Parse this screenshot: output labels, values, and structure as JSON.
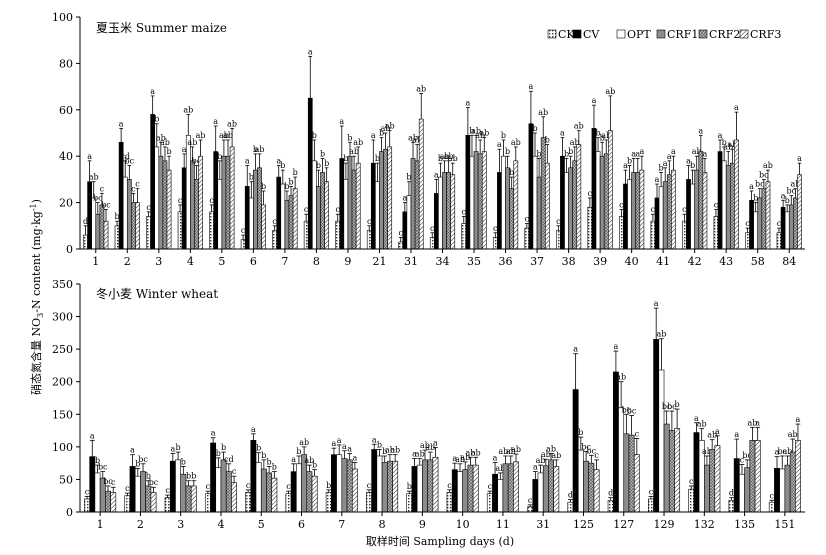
{
  "chart_data": {
    "type": "bar",
    "xlabel": "取样时间 Sampling days (d)",
    "ylabel": "硝态氮含量 NO3-N content (mg·kg-1)",
    "ylabel_parts": {
      "pre": "硝态氮含量 NO",
      "sub1": "3",
      "mid": "-N content (mg·kg",
      "sup": "-1",
      "post": ")"
    },
    "legend": [
      "CK",
      "CV",
      "OPT",
      "CRF1",
      "CRF2",
      "CRF3"
    ],
    "legend_position": "top-right",
    "colors": {
      "CK": "#ffffff",
      "CV": "#000000",
      "OPT": "#ffffff",
      "CRF1": "#8c8c8c",
      "CRF2": "#bdbdbd",
      "CRF3": "#ffffff"
    },
    "panels": [
      {
        "title": "夏玉米 Summer maize",
        "ylim": [
          0,
          100
        ],
        "yticks": [
          0,
          20,
          40,
          60,
          80,
          100
        ],
        "categories": [
          "1",
          "2",
          "3",
          "4",
          "5",
          "6",
          "7",
          "8",
          "9",
          "21",
          "31",
          "34",
          "35",
          "36",
          "37",
          "38",
          "39",
          "40",
          "41",
          "42",
          "43",
          "58",
          "84"
        ],
        "series": [
          {
            "name": "CK",
            "values": [
              6,
              10,
              14,
              16,
              16,
              4,
              8,
              12,
              12,
              8,
              3,
              5,
              11,
              5,
              9,
              8,
              18,
              14,
              12,
              12,
              14,
              7,
              7
            ],
            "errors": [
              4,
              2,
              2,
              3,
              3,
              2,
              2,
              3,
              3,
              2,
              2,
              2,
              3,
              2,
              2,
              2,
              4,
              3,
              3,
              3,
              3,
              2,
              2
            ]
          },
          {
            "name": "CV",
            "values": [
              29,
              46,
              58,
              35,
              42,
              27,
              31,
              65,
              39,
              37,
              16,
              24,
              49,
              33,
              54,
              40,
              52,
              28,
              22,
              30,
              42,
              21,
              18
            ],
            "errors": [
              9,
              6,
              8,
              6,
              11,
              9,
              5,
              18,
              14,
              10,
              4,
              6,
              12,
              10,
              14,
              8,
              10,
              6,
              6,
              6,
              5,
              4,
              3
            ]
          },
          {
            "name": "OPT",
            "values": [
              22,
              31,
              44,
              49,
              30,
              22,
              28,
              38,
              30,
              29,
              23,
              31,
              40,
              40,
              40,
              33,
              42,
              30,
              27,
              28,
              38,
              16,
              16
            ],
            "errors": [
              7,
              7,
              10,
              9,
              8,
              7,
              6,
              9,
              7,
              8,
              6,
              6,
              9,
              7,
              10,
              6,
              6,
              6,
              6,
              6,
              6,
              4,
              3
            ]
          },
          {
            "name": "CRF1",
            "values": [
              15,
              30,
              40,
              38,
              40,
              34,
              21,
              27,
              40,
              42,
              39,
              33,
              42,
              35,
              31,
              35,
              40,
              33,
              29,
              34,
              36,
              22,
              19
            ],
            "errors": [
              5,
              6,
              6,
              6,
              7,
              7,
              4,
              7,
              6,
              6,
              7,
              5,
              7,
              5,
              8,
              5,
              6,
              6,
              6,
              6,
              6,
              4,
              4
            ]
          },
          {
            "name": "CRF2",
            "values": [
              19,
              20,
              38,
              30,
              40,
              35,
              23,
              33,
              34,
              43,
              38,
              33,
              41,
              26,
              48,
              38,
              41,
              33,
              32,
              42,
              37,
              26,
              22
            ],
            "errors": [
              5,
              4,
              6,
              6,
              7,
              6,
              4,
              6,
              6,
              7,
              7,
              5,
              6,
              5,
              9,
              6,
              6,
              6,
              6,
              7,
              6,
              4,
              4
            ]
          },
          {
            "name": "CRF3",
            "values": [
              12,
              20,
              34,
              40,
              44,
              19,
              26,
              29,
              37,
              44,
              56,
              32,
              42,
              38,
              37,
              45,
              51,
              34,
              34,
              33,
              47,
              29,
              32
            ],
            "errors": [
              5,
              6,
              6,
              7,
              8,
              6,
              5,
              6,
              7,
              7,
              11,
              5,
              6,
              6,
              8,
              6,
              15,
              6,
              6,
              6,
              12,
              5,
              5
            ]
          }
        ],
        "labels": [
          [
            "d",
            "b",
            "c",
            "c",
            "c",
            "c",
            "c",
            "c",
            "c",
            "c",
            "c",
            "c",
            "c",
            "c",
            "c",
            "c",
            "c",
            "c",
            "c",
            "c",
            "c",
            "c",
            "c"
          ],
          [
            "a",
            "a",
            "a",
            "a",
            "a",
            "a",
            "a",
            "a",
            "a",
            "a",
            "a",
            "a",
            "a",
            "a",
            "a",
            "a",
            "a",
            "a",
            "a",
            "a",
            "a",
            "a",
            "a"
          ],
          [
            "ab",
            "cd",
            "b",
            "ab",
            "b",
            "b",
            "b",
            "b",
            "b",
            "b",
            "b",
            "b",
            "b",
            "b",
            "b",
            "b",
            "b",
            "b",
            "b",
            "b",
            "b",
            "b",
            "b"
          ],
          [
            "bc",
            "bc",
            "ab",
            "ab",
            "ab",
            "b",
            "b",
            "b",
            "b",
            "b",
            "ab",
            "ab",
            "ab",
            "b",
            "b",
            "b",
            "b",
            "a",
            "a",
            "ab",
            "ab",
            "bc",
            "bc"
          ],
          [
            "c",
            "c",
            "ab",
            "bc",
            "ab",
            "ab",
            "b",
            "b",
            "ab",
            "ab",
            "ab",
            "ab",
            "ab",
            "b",
            "ab",
            "ab",
            "ab",
            "a",
            "a",
            "a",
            "ab",
            "bc",
            "ab"
          ],
          [
            "bc",
            "c",
            "b",
            "ab",
            "ab",
            "b",
            "b",
            "b",
            "ab",
            "ab",
            "ab",
            "ab",
            "ab",
            "ab",
            "b",
            "ab",
            "ab",
            "a",
            "a",
            "a",
            "a",
            "ab",
            "a"
          ]
        ]
      },
      {
        "title": "冬小麦 Winter wheat",
        "ylim": [
          0,
          350
        ],
        "yticks": [
          0,
          50,
          100,
          150,
          200,
          250,
          300,
          350
        ],
        "categories": [
          "1",
          "2",
          "3",
          "4",
          "5",
          "6",
          "7",
          "8",
          "9",
          "10",
          "11",
          "31",
          "125",
          "127",
          "129",
          "132",
          "135",
          "151"
        ],
        "series": [
          {
            "name": "CK",
            "values": [
              20,
              25,
              22,
              28,
              30,
              28,
              30,
              30,
              28,
              30,
              28,
              8,
              15,
              18,
              20,
              35,
              18,
              15
            ],
            "errors": [
              4,
              4,
              4,
              4,
              4,
              4,
              4,
              4,
              4,
              4,
              4,
              3,
              4,
              4,
              4,
              5,
              4,
              3
            ]
          },
          {
            "name": "CV",
            "values": [
              85,
              70,
              78,
              106,
              110,
              62,
              88,
              96,
              70,
              65,
              58,
              50,
              188,
              215,
              265,
              122,
              82,
              67
            ],
            "errors": [
              25,
              18,
              12,
              8,
              10,
              12,
              10,
              8,
              12,
              10,
              18,
              12,
              55,
              32,
              48,
              15,
              30,
              18
            ]
          },
          {
            "name": "OPT",
            "values": [
              60,
              55,
              80,
              68,
              76,
              74,
              88,
              86,
              72,
              62,
              50,
              60,
              95,
              160,
              218,
              110,
              58,
              66
            ],
            "errors": [
              12,
              12,
              12,
              15,
              15,
              12,
              15,
              10,
              10,
              12,
              10,
              12,
              20,
              40,
              48,
              18,
              15,
              20
            ]
          },
          {
            "name": "CRF1",
            "values": [
              52,
              62,
              58,
              80,
              66,
              88,
              82,
              76,
              80,
              65,
              74,
              71,
              78,
              120,
              135,
              72,
              68,
              72
            ],
            "errors": [
              10,
              12,
              12,
              12,
              14,
              12,
              12,
              10,
              15,
              12,
              12,
              10,
              15,
              30,
              20,
              14,
              12,
              14
            ]
          },
          {
            "name": "CRF2",
            "values": [
              32,
              40,
              40,
              62,
              60,
              62,
              80,
              78,
              80,
              72,
              74,
              80,
              75,
              118,
              125,
              96,
              110,
              92
            ],
            "errors": [
              8,
              8,
              8,
              12,
              10,
              10,
              10,
              10,
              12,
              12,
              12,
              10,
              12,
              30,
              30,
              15,
              20,
              20
            ]
          },
          {
            "name": "CRF3",
            "values": [
              30,
              30,
              40,
              45,
              52,
              55,
              66,
              78,
              84,
              72,
              77,
              70,
              65,
              88,
              128,
              102,
              110,
              110
            ],
            "errors": [
              8,
              8,
              8,
              10,
              10,
              10,
              10,
              10,
              15,
              12,
              12,
              10,
              15,
              25,
              30,
              15,
              20,
              25
            ]
          }
        ],
        "labels": [
          [
            "c",
            "c",
            "c",
            "c",
            "c",
            "c",
            "b",
            "c",
            "b",
            "c",
            "c",
            "c",
            "d",
            "d",
            "c",
            "c",
            "d",
            "c"
          ],
          [
            "a",
            "a",
            "a",
            "a",
            "a",
            "a",
            "a",
            "a",
            "a",
            "a",
            "a",
            "a",
            "a",
            "a",
            "a",
            "a",
            "a",
            "a"
          ],
          [
            "b",
            "b",
            "b",
            "b",
            "b",
            "b",
            "a",
            "b",
            "ab",
            "ab",
            "ab",
            "ab",
            "b",
            "ab",
            "ab",
            "ab",
            "c",
            "bc"
          ],
          [
            "bc",
            "bc",
            "b",
            "b",
            "b",
            "ab",
            "a",
            "b",
            "ab",
            "ab",
            "abc",
            "ab",
            "bc",
            "bc",
            "bc",
            "ab",
            "bc",
            "ab"
          ],
          [
            "bc",
            "b",
            "b",
            "cd",
            "b",
            "ab",
            "a",
            "ab",
            "ab",
            "ab",
            "ab",
            "ab",
            "bc",
            "bc",
            "bc",
            "ab",
            "ab",
            "ab"
          ],
          [
            "c",
            "bc",
            "b",
            "c",
            "b",
            "b",
            "a",
            "ab",
            "a",
            "ab",
            "ab",
            "ab",
            "c",
            "c",
            "b",
            "a",
            "a",
            "a"
          ]
        ]
      }
    ]
  }
}
